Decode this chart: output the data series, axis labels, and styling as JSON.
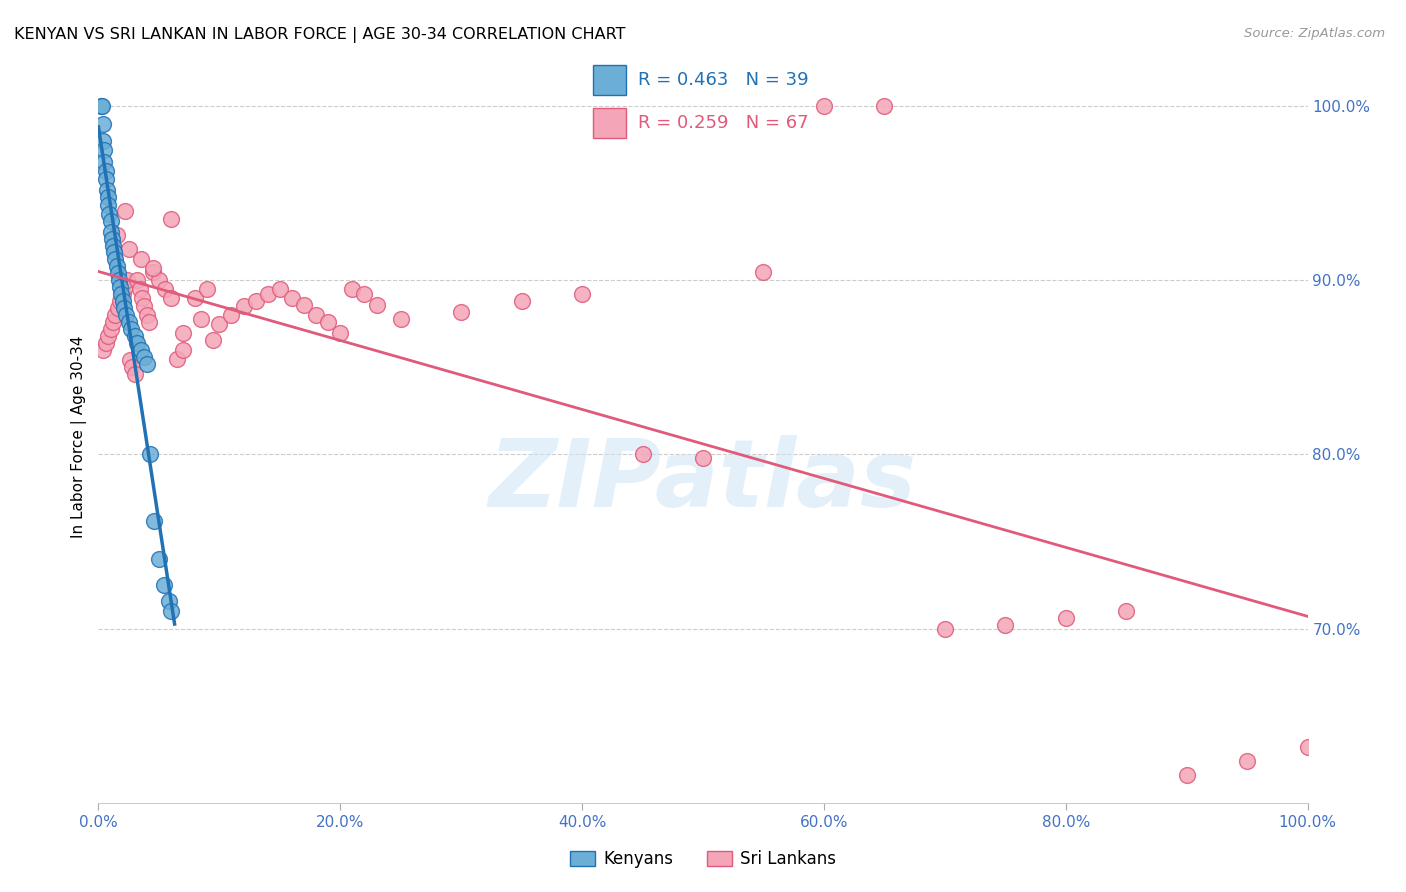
{
  "title": "KENYAN VS SRI LANKAN IN LABOR FORCE | AGE 30-34 CORRELATION CHART",
  "source": "Source: ZipAtlas.com",
  "ylabel": "In Labor Force | Age 30-34",
  "watermark": "ZIPatlas",
  "kenyan_R": 0.463,
  "kenyan_N": 39,
  "srilankan_R": 0.259,
  "srilankan_N": 67,
  "kenyan_color": "#6baed6",
  "kenyan_line_color": "#2171b5",
  "srilankan_color": "#f4a6b8",
  "srilankan_line_color": "#e05a7a",
  "background_color": "#ffffff",
  "grid_color": "#cccccc",
  "axis_tick_color": "#4472c4",
  "xlim": [
    0.0,
    1.0
  ],
  "ylim": [
    0.6,
    1.02
  ],
  "xtick_positions": [
    0.0,
    0.2,
    0.4,
    0.6,
    0.8,
    1.0
  ],
  "xtick_labels": [
    "0.0%",
    "20.0%",
    "40.0%",
    "60.0%",
    "80.0%",
    "100.0%"
  ],
  "ytick_positions": [
    0.7,
    0.8,
    0.9,
    1.0
  ],
  "ytick_labels_right": [
    "70.0%",
    "80.0%",
    "90.0%",
    "100.0%"
  ],
  "kenyan_x": [
    0.002,
    0.003,
    0.004,
    0.004,
    0.005,
    0.005,
    0.006,
    0.006,
    0.007,
    0.008,
    0.008,
    0.009,
    0.01,
    0.01,
    0.011,
    0.012,
    0.013,
    0.014,
    0.015,
    0.016,
    0.017,
    0.018,
    0.019,
    0.02,
    0.021,
    0.023,
    0.025,
    0.027,
    0.03,
    0.032,
    0.035,
    0.038,
    0.04,
    0.043,
    0.046,
    0.05,
    0.054,
    0.058,
    0.06
  ],
  "kenyan_y": [
    1.0,
    1.0,
    0.99,
    0.98,
    0.975,
    0.968,
    0.963,
    0.958,
    0.952,
    0.948,
    0.943,
    0.938,
    0.934,
    0.928,
    0.924,
    0.92,
    0.916,
    0.912,
    0.908,
    0.904,
    0.9,
    0.896,
    0.892,
    0.888,
    0.884,
    0.88,
    0.876,
    0.872,
    0.868,
    0.864,
    0.86,
    0.856,
    0.852,
    0.8,
    0.762,
    0.74,
    0.725,
    0.716,
    0.71
  ],
  "srilankan_x": [
    0.004,
    0.006,
    0.008,
    0.01,
    0.012,
    0.014,
    0.016,
    0.018,
    0.02,
    0.022,
    0.024,
    0.026,
    0.028,
    0.03,
    0.032,
    0.034,
    0.036,
    0.038,
    0.04,
    0.042,
    0.045,
    0.05,
    0.055,
    0.06,
    0.065,
    0.07,
    0.08,
    0.09,
    0.1,
    0.11,
    0.12,
    0.13,
    0.14,
    0.15,
    0.16,
    0.17,
    0.18,
    0.19,
    0.2,
    0.21,
    0.22,
    0.23,
    0.25,
    0.3,
    0.35,
    0.4,
    0.45,
    0.5,
    0.55,
    0.6,
    0.65,
    0.7,
    0.75,
    0.8,
    0.85,
    0.9,
    0.95,
    1.0,
    0.015,
    0.025,
    0.035,
    0.022,
    0.045,
    0.06,
    0.07,
    0.085,
    0.095
  ],
  "srilankan_y": [
    0.86,
    0.864,
    0.868,
    0.872,
    0.876,
    0.88,
    0.884,
    0.888,
    0.892,
    0.896,
    0.9,
    0.854,
    0.85,
    0.846,
    0.9,
    0.895,
    0.89,
    0.885,
    0.88,
    0.876,
    0.905,
    0.9,
    0.895,
    0.89,
    0.855,
    0.87,
    0.89,
    0.895,
    0.875,
    0.88,
    0.885,
    0.888,
    0.892,
    0.895,
    0.89,
    0.886,
    0.88,
    0.876,
    0.87,
    0.895,
    0.892,
    0.886,
    0.878,
    0.882,
    0.888,
    0.892,
    0.8,
    0.798,
    0.905,
    1.0,
    1.0,
    0.7,
    0.702,
    0.706,
    0.71,
    0.616,
    0.624,
    0.632,
    0.926,
    0.918,
    0.912,
    0.94,
    0.907,
    0.935,
    0.86,
    0.878,
    0.866
  ]
}
